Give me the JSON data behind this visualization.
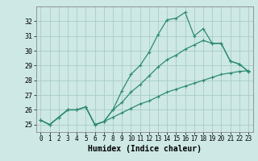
{
  "xlabel": "Humidex (Indice chaleur)",
  "x_values": [
    0,
    1,
    2,
    3,
    4,
    5,
    6,
    7,
    8,
    9,
    10,
    11,
    12,
    13,
    14,
    15,
    16,
    17,
    18,
    19,
    20,
    21,
    22,
    23
  ],
  "line1": [
    25.3,
    25.0,
    25.5,
    26.0,
    26.0,
    26.2,
    25.0,
    25.2,
    26.0,
    27.3,
    28.4,
    29.0,
    29.9,
    31.1,
    32.1,
    32.2,
    32.6,
    31.0,
    31.5,
    30.5,
    30.5,
    29.3,
    29.1,
    28.6
  ],
  "line2": [
    25.3,
    25.0,
    25.5,
    26.0,
    26.0,
    26.2,
    25.0,
    25.2,
    26.0,
    26.5,
    27.2,
    27.7,
    28.3,
    28.9,
    29.4,
    29.7,
    30.1,
    30.4,
    30.7,
    30.5,
    30.5,
    29.3,
    29.1,
    28.6
  ],
  "line3": [
    25.3,
    25.0,
    25.5,
    26.0,
    26.0,
    26.2,
    25.0,
    25.2,
    25.5,
    25.8,
    26.1,
    26.4,
    26.6,
    26.9,
    27.2,
    27.4,
    27.6,
    27.8,
    28.0,
    28.2,
    28.4,
    28.5,
    28.6,
    28.65
  ],
  "line_color": "#2e8b73",
  "bg_color": "#cde8e5",
  "grid_color": "#a8ccc9",
  "ylim": [
    24.5,
    33.0
  ],
  "xlim": [
    -0.5,
    23.5
  ],
  "yticks": [
    25,
    26,
    27,
    28,
    29,
    30,
    31,
    32
  ],
  "xticks": [
    0,
    1,
    2,
    3,
    4,
    5,
    6,
    7,
    8,
    9,
    10,
    11,
    12,
    13,
    14,
    15,
    16,
    17,
    18,
    19,
    20,
    21,
    22,
    23
  ],
  "marker": "+",
  "markersize": 3.5,
  "linewidth": 0.9
}
